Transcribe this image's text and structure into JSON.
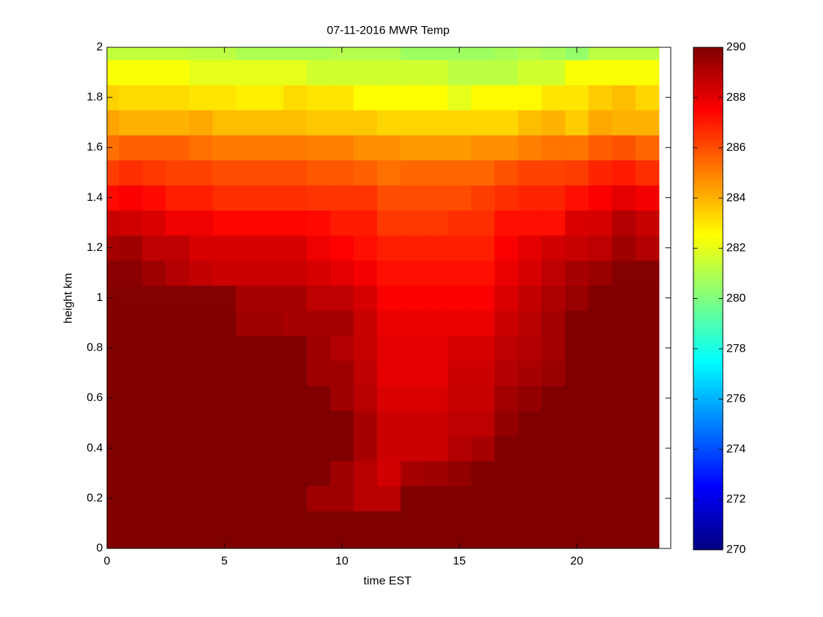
{
  "chart_data": {
    "type": "heatmap",
    "title": "07-11-2016 MWR Temp",
    "x_label": "time EST",
    "y_label": "height km",
    "x": [
      0,
      1,
      2,
      3,
      4,
      5,
      6,
      7,
      8,
      9,
      10,
      11,
      12,
      13,
      14,
      15,
      16,
      17,
      18,
      19,
      20,
      21,
      22,
      23
    ],
    "y": [
      0,
      0.1,
      0.2,
      0.3,
      0.4,
      0.5,
      0.6,
      0.7,
      0.8,
      0.9,
      1,
      1.1,
      1.2,
      1.3,
      1.4,
      1.5,
      1.6,
      1.7,
      1.8,
      1.9,
      2
    ],
    "z": [
      [
        290,
        290,
        290,
        290,
        290,
        290,
        290,
        290,
        290,
        290,
        290,
        290,
        290,
        290,
        290,
        290,
        290,
        290,
        290,
        290,
        290,
        290,
        290,
        290
      ],
      [
        290,
        290,
        290,
        290,
        290,
        290,
        290,
        290,
        290,
        290,
        290,
        290,
        290,
        290,
        290,
        290,
        290,
        290,
        290,
        290,
        290,
        290,
        290,
        290
      ],
      [
        290,
        290,
        290,
        290,
        290,
        290,
        290,
        290,
        290,
        289.4,
        289.4,
        288.9,
        288.9,
        290,
        290,
        290,
        290,
        290,
        290,
        290,
        290,
        290,
        290,
        290
      ],
      [
        290,
        290,
        290,
        290,
        290,
        290,
        290,
        290,
        290,
        290,
        289.4,
        288.9,
        288.4,
        289.2,
        289.4,
        289.6,
        290,
        290,
        290,
        290,
        290,
        290,
        290,
        290
      ],
      [
        290,
        290,
        290,
        290,
        290,
        290,
        290,
        290,
        290,
        290,
        290,
        289.2,
        288.5,
        288.5,
        288.5,
        289,
        289.2,
        290,
        290,
        290,
        290,
        290,
        290,
        290
      ],
      [
        290,
        290,
        290,
        290,
        290,
        290,
        290,
        290,
        290,
        290,
        290,
        289.2,
        288.5,
        288.5,
        288.5,
        288.8,
        288.8,
        289.6,
        290,
        290,
        290,
        290,
        290,
        290
      ],
      [
        290,
        290,
        290,
        290,
        290,
        290,
        290,
        290,
        290,
        290,
        289.4,
        288.9,
        288.2,
        288.2,
        288.2,
        288.6,
        288.6,
        289.3,
        289.6,
        290,
        290,
        290,
        290,
        290
      ],
      [
        290,
        290,
        290,
        290,
        290,
        290,
        290,
        290,
        290,
        289.4,
        289.4,
        288.8,
        288,
        288,
        288,
        288.5,
        288.5,
        289,
        289.2,
        289.5,
        290,
        290,
        290,
        290
      ],
      [
        290,
        290,
        290,
        290,
        290,
        290,
        290,
        290,
        290,
        289.4,
        289,
        288.6,
        288,
        288,
        288,
        288.3,
        288.3,
        288.8,
        289,
        289.3,
        290,
        290,
        290,
        290
      ],
      [
        290,
        290,
        290,
        290,
        290,
        290,
        289.4,
        289.4,
        289.2,
        289.2,
        289.2,
        288.6,
        287.9,
        287.9,
        287.9,
        287.9,
        287.9,
        288.5,
        288.9,
        289.3,
        290,
        290,
        290,
        290
      ],
      [
        289.9,
        289.9,
        289.9,
        289.9,
        289.9,
        289.9,
        289.2,
        289.2,
        289.2,
        288.8,
        288.8,
        288.3,
        287.6,
        287.6,
        287.6,
        287.6,
        287.6,
        288.2,
        288.7,
        289.1,
        289.5,
        290,
        290,
        290
      ],
      [
        289.8,
        289.8,
        289.4,
        289,
        288.7,
        288.5,
        288.5,
        288.5,
        288.5,
        288.3,
        288,
        287.7,
        287.2,
        287.2,
        287.2,
        287.2,
        287.2,
        287.9,
        288.3,
        288.8,
        289.2,
        289.5,
        289.9,
        289.9
      ],
      [
        289.2,
        289.4,
        288.8,
        288.8,
        288.3,
        288.3,
        288.3,
        288.3,
        288.3,
        287.8,
        287.5,
        287.2,
        286.9,
        286.9,
        286.9,
        286.9,
        286.9,
        287.6,
        288,
        288.4,
        288.6,
        288.8,
        289.4,
        289
      ],
      [
        288.6,
        288.4,
        288.2,
        287.8,
        287.8,
        287.4,
        287.4,
        287.4,
        287.4,
        287.3,
        287,
        287,
        286.4,
        286.4,
        286.4,
        286.6,
        286.6,
        287.2,
        287.2,
        287.2,
        288.2,
        288.3,
        289,
        288.6
      ],
      [
        287.3,
        287.6,
        287.3,
        286.9,
        286.9,
        286.6,
        286.6,
        286.6,
        286.6,
        286.5,
        286.5,
        286.5,
        286,
        286,
        286,
        286,
        286.3,
        286.6,
        286.8,
        286.8,
        287.2,
        287.6,
        288,
        287.7
      ],
      [
        286.3,
        286.6,
        286.4,
        286.2,
        286.2,
        286,
        286,
        286,
        286,
        285.8,
        285.8,
        285.6,
        285.3,
        285.5,
        285.5,
        285.5,
        285.5,
        285.9,
        286.2,
        286.2,
        286.3,
        286.8,
        287,
        286.6
      ],
      [
        285.3,
        285.6,
        285.6,
        285.6,
        285.3,
        285.1,
        285.1,
        285.1,
        285.1,
        285,
        285,
        284.7,
        284.7,
        284.5,
        284.5,
        284.5,
        284.7,
        284.7,
        285,
        285.2,
        285.2,
        285.7,
        285.9,
        285.5
      ],
      [
        284.3,
        284,
        284,
        284,
        284.2,
        283.8,
        283.8,
        283.8,
        283.8,
        283.6,
        283.6,
        283.6,
        283.3,
        283.3,
        283.3,
        283.3,
        283.3,
        283.3,
        283.8,
        284,
        283.5,
        284.2,
        284,
        284
      ],
      [
        283.4,
        283.2,
        283.2,
        283.2,
        283,
        283,
        282.8,
        282.8,
        283.2,
        283,
        283,
        282.5,
        282.5,
        282.5,
        282.5,
        282,
        282.6,
        282.6,
        282.6,
        283,
        283,
        283.5,
        283.8,
        283.3
      ],
      [
        282.4,
        282.4,
        282.4,
        282.4,
        282,
        282,
        282,
        282,
        282,
        281.6,
        281.6,
        281.6,
        281.6,
        281.6,
        281.6,
        281.2,
        281.2,
        281.2,
        281.6,
        281.6,
        282.4,
        282.4,
        282.4,
        282.4
      ],
      [
        281.3,
        281.3,
        281.3,
        281.3,
        281.2,
        281.2,
        280.9,
        280.9,
        280.9,
        280.9,
        281,
        281,
        281,
        280.6,
        280.6,
        280.6,
        280.6,
        280.8,
        281,
        280.8,
        280.4,
        281.2,
        281.2,
        281.2
      ]
    ],
    "colormap": "jet",
    "clim": [
      270,
      290
    ],
    "cticks": [
      270,
      272,
      274,
      276,
      278,
      280,
      282,
      284,
      286,
      288,
      290
    ],
    "xlim": [
      0,
      24
    ],
    "xticks": [
      0,
      5,
      10,
      15,
      20
    ],
    "ylim": [
      0,
      2
    ],
    "yticks": [
      0,
      0.2,
      0.4,
      0.6,
      0.8,
      1,
      1.2,
      1.4,
      1.6,
      1.8,
      2
    ]
  }
}
